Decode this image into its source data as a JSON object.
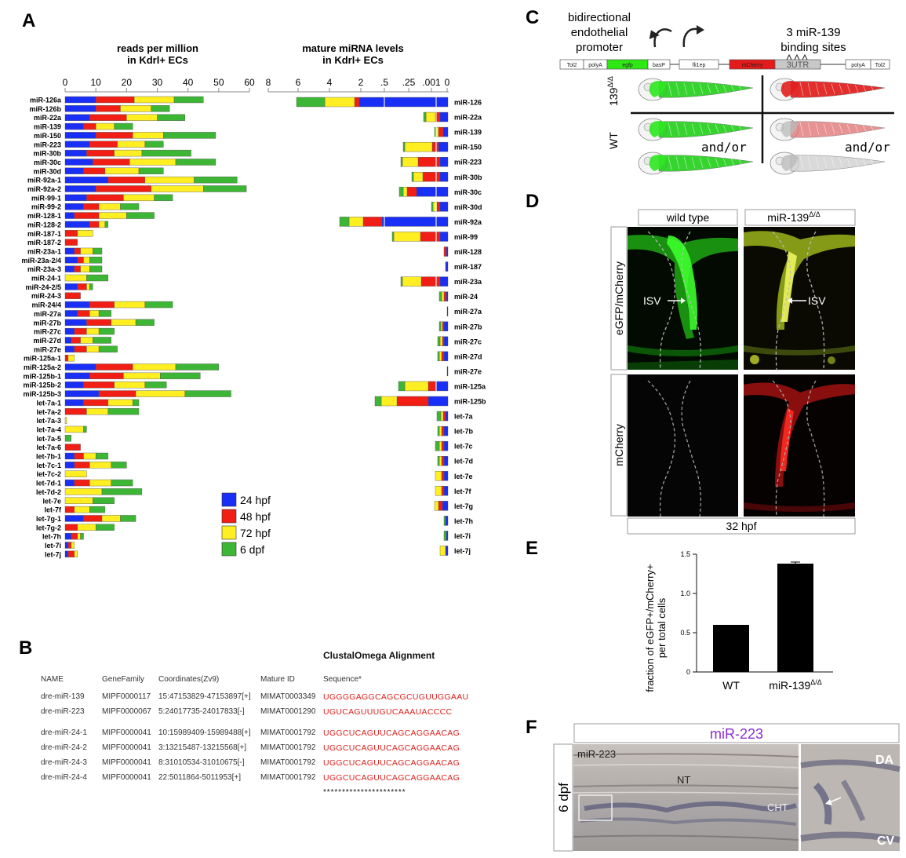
{
  "panels": {
    "A": "A",
    "B": "B",
    "C": "C",
    "D": "D",
    "E": "E",
    "F": "F"
  },
  "legend": [
    {
      "label": "24 hpf",
      "color": "#1a2ff5"
    },
    {
      "label": "48 hpf",
      "color": "#f01e14"
    },
    {
      "label": "72 hpf",
      "color": "#ffee22"
    },
    {
      "label": "6 dpf",
      "color": "#3db535"
    }
  ],
  "chart_data": [
    {
      "type": "bar",
      "orientation": "horizontal-stacked",
      "title_lines": [
        "reads per million",
        "in Kdrl+ ECs"
      ],
      "xlim": [
        0,
        60
      ],
      "ticks": [
        0,
        10,
        20,
        30,
        40,
        50,
        60
      ],
      "series_names": [
        "24 hpf",
        "48 hpf",
        "72 hpf",
        "6 dpf"
      ],
      "categories": [
        "miR-126a",
        "miR-126b",
        "miR-22a",
        "miR-139",
        "miR-150",
        "miR-223",
        "miR-30b",
        "miR-30c",
        "miR-30d",
        "miR-92a-1",
        "miR-92a-2",
        "miR-99-1",
        "miR-99-2",
        "miR-128-1",
        "miR-128-2",
        "miR-187-1",
        "miR-187-2",
        "miR-23a-1",
        "miR-23a-2/4",
        "miR-23a-3",
        "miR-24-1",
        "miR-24-2/5",
        "miR-24-3",
        "miR-24/4",
        "miR-27a",
        "miR-27b",
        "miR-27c",
        "miR-27d",
        "miR-27e",
        "miR-125a-1",
        "miR-125a-2",
        "miR-125b-1",
        "miR-125b-2",
        "miR-125b-3",
        "let-7a-1",
        "let-7a-2",
        "let-7a-3",
        "let-7a-4",
        "let-7a-5",
        "let-7a-6",
        "let-7b-1",
        "let-7c-1",
        "let-7c-2",
        "let-7d-1",
        "let-7d-2",
        "let-7e",
        "let-7f",
        "let-7g-1",
        "let-7g-2",
        "let-7h",
        "let-7i",
        "let-7j"
      ],
      "values": [
        [
          10,
          12.5,
          13,
          9.5
        ],
        [
          10,
          8,
          10,
          6
        ],
        [
          8,
          12,
          10,
          9
        ],
        [
          6,
          4,
          6,
          6
        ],
        [
          10,
          12,
          10,
          17
        ],
        [
          8,
          9,
          9,
          6
        ],
        [
          7,
          9,
          9,
          16
        ],
        [
          9,
          12,
          15,
          13
        ],
        [
          6,
          7,
          11,
          8
        ],
        [
          14,
          12,
          16,
          14
        ],
        [
          10,
          18,
          17,
          14
        ],
        [
          7,
          12,
          10,
          6
        ],
        [
          6,
          5,
          7,
          6
        ],
        [
          3,
          8,
          9,
          9
        ],
        [
          8,
          3,
          2,
          1
        ],
        [
          0,
          4,
          5,
          0
        ],
        [
          0,
          4,
          0,
          0
        ],
        [
          3,
          2,
          4,
          3
        ],
        [
          4,
          2,
          2,
          4
        ],
        [
          3,
          2,
          3,
          4
        ],
        [
          0,
          0,
          7,
          7
        ],
        [
          4,
          3,
          1,
          1
        ],
        [
          0,
          5,
          0,
          0
        ],
        [
          8,
          8,
          10,
          9
        ],
        [
          4,
          4,
          3,
          4
        ],
        [
          7,
          8,
          8,
          6
        ],
        [
          3,
          4,
          4,
          5
        ],
        [
          2,
          3,
          4,
          6
        ],
        [
          3,
          4,
          4,
          6
        ],
        [
          0,
          1,
          2,
          0
        ],
        [
          10,
          12,
          14,
          14
        ],
        [
          8,
          11,
          12,
          13
        ],
        [
          6,
          10,
          10,
          7
        ],
        [
          11,
          12,
          16,
          15
        ],
        [
          6,
          8,
          8,
          2
        ],
        [
          0,
          7,
          7,
          10
        ],
        [
          0,
          0,
          0.5,
          0
        ],
        [
          0,
          0,
          6,
          1
        ],
        [
          0,
          0,
          0,
          2
        ],
        [
          0,
          5,
          0,
          0
        ],
        [
          3,
          3,
          4,
          4
        ],
        [
          3,
          5,
          7,
          5
        ],
        [
          0,
          0,
          7,
          0
        ],
        [
          3,
          5,
          7,
          7
        ],
        [
          0,
          0,
          12,
          13
        ],
        [
          0,
          0,
          9,
          7
        ],
        [
          0,
          3,
          5,
          5
        ],
        [
          6,
          6,
          6,
          5
        ],
        [
          0,
          4,
          6,
          6
        ],
        [
          2,
          2,
          1,
          1
        ],
        [
          1,
          1,
          1,
          0
        ],
        [
          1,
          2,
          1,
          0
        ]
      ]
    },
    {
      "type": "bar",
      "orientation": "horizontal-stacked",
      "title_lines": [
        "mature miRNA levels",
        "in Kdrl+ ECs"
      ],
      "axis_scale": "reciprocal",
      "ticks": [
        "8",
        "6",
        "4",
        "2",
        ".5",
        ".25",
        ".001",
        "0"
      ],
      "series_names": [
        "24 hpf",
        "48 hpf",
        "72 hpf",
        "6 dpf"
      ],
      "categories": [
        "miR-126",
        "miR-22a",
        "miR-139",
        "miR-150",
        "miR-223",
        "miR-30b",
        "miR-30c",
        "miR-30d",
        "miR-92a",
        "miR-99",
        "miR-128",
        "miR-187",
        "miR-23a",
        "miR-24",
        "miR-27a",
        "miR-27b",
        "miR-27c",
        "miR-27d",
        "miR-27e",
        "miR-125a",
        "miR-125b",
        "let-7a",
        "let-7b",
        "let-7c",
        "let-7d",
        "let-7e",
        "let-7f",
        "let-7g",
        "let-7h",
        "let-7i",
        "let-7j"
      ],
      "segments_px": [
        [
          113,
          6,
          38,
          36
        ],
        [
          10,
          6,
          12,
          3
        ],
        [
          6,
          6,
          3,
          2
        ],
        [
          12,
          8,
          35,
          2
        ],
        [
          10,
          28,
          20,
          2
        ],
        [
          10,
          22,
          12,
          2
        ],
        [
          40,
          12,
          5,
          5
        ],
        [
          10,
          4,
          5,
          2
        ],
        [
          84,
          24,
          18,
          12
        ],
        [
          10,
          25,
          34,
          2
        ],
        [
          2,
          3,
          0,
          0
        ],
        [
          3,
          0,
          0,
          0
        ],
        [
          10,
          24,
          24,
          2
        ],
        [
          2,
          3,
          3,
          3
        ],
        [
          1,
          0,
          0,
          0
        ],
        [
          5,
          2,
          2,
          2
        ],
        [
          5,
          2,
          3,
          3
        ],
        [
          5,
          3,
          3,
          2
        ],
        [
          1,
          0,
          0,
          0
        ],
        [
          15,
          10,
          30,
          8
        ],
        [
          25,
          40,
          20,
          8
        ],
        [
          3,
          3,
          3,
          5
        ],
        [
          5,
          3,
          3,
          2
        ],
        [
          5,
          3,
          3,
          5
        ],
        [
          5,
          3,
          3,
          2
        ],
        [
          5,
          3,
          8,
          0
        ],
        [
          5,
          3,
          8,
          0
        ],
        [
          7,
          5,
          5,
          0
        ],
        [
          3,
          0,
          0,
          2
        ],
        [
          2,
          0,
          0,
          3
        ],
        [
          3,
          0,
          7,
          0
        ]
      ]
    },
    {
      "type": "bar",
      "title": "",
      "ylabel_lines": [
        "fraction of eGFP+/mCherry+",
        "per total cells"
      ],
      "categories": [
        "WT",
        "miR-139"
      ],
      "category_superscript": [
        "",
        "Δ/Δ"
      ],
      "values": [
        0.6,
        1.38
      ],
      "errors": [
        0,
        0.02
      ],
      "ylim": [
        0,
        1.5
      ],
      "ticks": [
        "0",
        "0.5",
        "1.0",
        "1.5"
      ]
    }
  ],
  "panelB": {
    "title": "ClustalOmega Alignment",
    "headers": [
      "NAME",
      "GeneFamily",
      "Coordinates(Zv9)",
      "Mature ID",
      "Sequence*"
    ],
    "rows": [
      [
        "dre-miR-139",
        "MIPF0000117",
        "15:47153829-47153897[+]",
        "MIMAT0003349",
        "UGGGGAGGCAGCGCUGUUGGAAU"
      ],
      [
        "dre-miR-223",
        "MIPF0000067",
        "5:24017735-24017833[-]",
        "MIMAT0001290",
        "UGUCAGUUUGUCAAAUACCCC"
      ],
      [
        "dre-miR-24-1",
        "MIPF0000041",
        "10:15989409-15989488[+]",
        "MIMAT0001792",
        "UGGCUCAGUUCAGCAGGAACAG"
      ],
      [
        "dre-miR-24-2",
        "MIPF0000041",
        "3:13215487-13215568[+]",
        "MIMAT0001792",
        "UGGCUCAGUUCAGCAGGAACAG"
      ],
      [
        "dre-miR-24-3",
        "MIPF0000041",
        "8:31010534-31010675[-]",
        "MIMAT0001792",
        "UGGCUCAGUUCAGCAGGAACAG"
      ],
      [
        "dre-miR-24-4",
        "MIPF0000041",
        "22:5011864-5011953[+]",
        "MIMAT0001792",
        "UGGCUCAGUUCAGCAGGAACAG"
      ]
    ],
    "stars": "**********************"
  },
  "panelC": {
    "promoter_lines": [
      "bidirectional",
      "endothelial",
      "promoter"
    ],
    "sites_lines": [
      "3 miR-139",
      "binding sites"
    ],
    "construct": [
      "Tol2",
      "polyA",
      "egfp",
      "basP",
      "fli1ep",
      "mCherry",
      "3UTR",
      "polyA",
      "Tol2"
    ],
    "row1_label": "139",
    "row1_sup": "Δ/Δ",
    "row2_label": "WT",
    "andor": "and/or"
  },
  "panelD": {
    "col1": "wild type",
    "col2": "miR-139",
    "col2_sup": "Δ/Δ",
    "row1": "eGFP/mCherry",
    "row2": "mCherry",
    "isv": "ISV",
    "footer": "32 hpf"
  },
  "panelF": {
    "title": "miR-223",
    "side": "6 dpf",
    "corner": "miR-223",
    "nt": "NT",
    "cht": "CHT",
    "da": "DA",
    "cv": "CV"
  }
}
